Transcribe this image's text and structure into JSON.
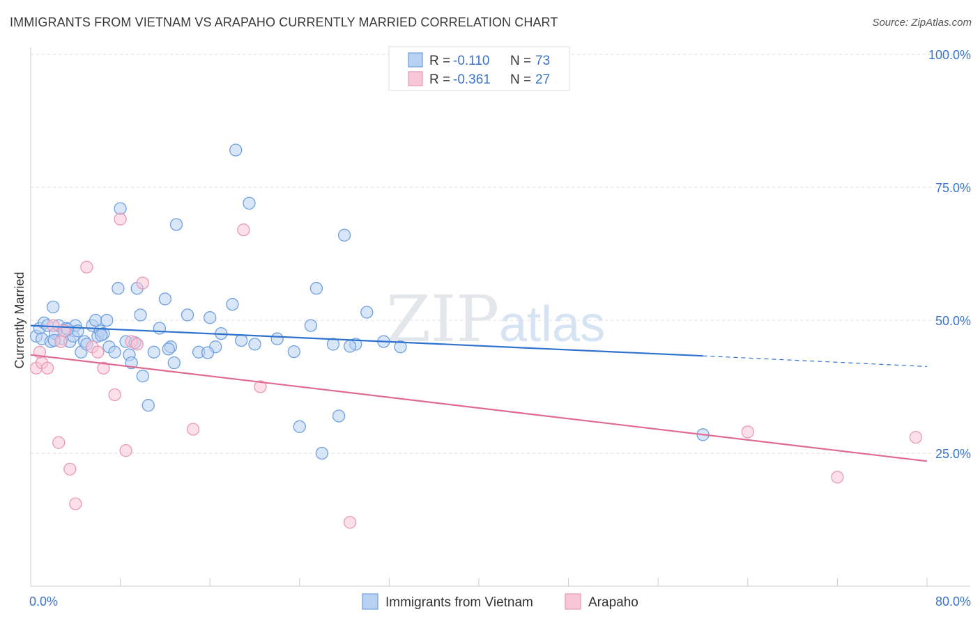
{
  "header": {
    "title": "IMMIGRANTS FROM VIETNAM VS ARAPAHO CURRENTLY MARRIED CORRELATION CHART",
    "source": "Source: ZipAtlas.com"
  },
  "watermark": {
    "zip": "ZIP",
    "atlas": "atlas"
  },
  "legend_top": [
    {
      "r_label": "R = ",
      "r_value": "-0.110",
      "n_label": "N = ",
      "n_value": "73"
    },
    {
      "r_label": "R = ",
      "r_value": "-0.361",
      "n_label": "N = ",
      "n_value": "27"
    }
  ],
  "chart_data": {
    "type": "scatter",
    "title": "IMMIGRANTS FROM VIETNAM VS ARAPAHO CURRENTLY MARRIED CORRELATION CHART",
    "xlabel": "",
    "ylabel": "Currently Married",
    "xlim": [
      0,
      80
    ],
    "ylim": [
      0,
      105
    ],
    "x_tick_labels": [
      "0.0%",
      "80.0%"
    ],
    "y_ticks": [
      25,
      50,
      75,
      100
    ],
    "y_tick_labels": [
      "25.0%",
      "50.0%",
      "75.0%",
      "100.0%"
    ],
    "grid": true,
    "legend_position": "top-center",
    "series": [
      {
        "name": "Immigrants from Vietnam",
        "color": "#6fa0e0",
        "fill": "#b9d2f3",
        "line_color": "#2e72cf",
        "trend": {
          "x0": 0,
          "y0": 49.0,
          "x1": 60,
          "y1": 43.3,
          "dash_to_x": 80,
          "dash_to_y": 41.3
        },
        "points": [
          [
            0.5,
            47
          ],
          [
            0.8,
            48.5
          ],
          [
            1.0,
            46.5
          ],
          [
            1.2,
            49.5
          ],
          [
            1.5,
            49
          ],
          [
            1.8,
            46
          ],
          [
            2.0,
            52.5
          ],
          [
            2.2,
            47.5
          ],
          [
            2.5,
            49
          ],
          [
            2.8,
            46.5
          ],
          [
            3.0,
            48
          ],
          [
            3.2,
            48.5
          ],
          [
            3.5,
            46
          ],
          [
            3.8,
            47
          ],
          [
            4.0,
            49
          ],
          [
            4.2,
            48
          ],
          [
            4.5,
            44
          ],
          [
            4.8,
            46
          ],
          [
            5.0,
            45.5
          ],
          [
            5.5,
            49
          ],
          [
            5.8,
            50
          ],
          [
            6.0,
            47
          ],
          [
            6.2,
            48
          ],
          [
            6.5,
            47.5
          ],
          [
            6.8,
            50
          ],
          [
            7.0,
            45
          ],
          [
            7.5,
            44
          ],
          [
            7.8,
            56
          ],
          [
            8.0,
            71
          ],
          [
            8.5,
            46
          ],
          [
            8.8,
            43.5
          ],
          [
            9.0,
            42
          ],
          [
            9.5,
            56
          ],
          [
            9.8,
            51
          ],
          [
            10.0,
            39.5
          ],
          [
            10.5,
            34
          ],
          [
            11.0,
            44
          ],
          [
            11.5,
            48.5
          ],
          [
            12.0,
            54
          ],
          [
            12.5,
            45
          ],
          [
            12.8,
            42
          ],
          [
            13.0,
            68
          ],
          [
            14.0,
            51
          ],
          [
            15.0,
            44
          ],
          [
            16.0,
            50.5
          ],
          [
            16.5,
            45
          ],
          [
            17.0,
            47.5
          ],
          [
            18.0,
            53
          ],
          [
            18.3,
            82
          ],
          [
            19.5,
            72
          ],
          [
            20.0,
            45.5
          ],
          [
            22.0,
            46.5
          ],
          [
            24.0,
            30
          ],
          [
            25.0,
            49
          ],
          [
            25.5,
            56
          ],
          [
            26.0,
            25
          ],
          [
            27.0,
            45.5
          ],
          [
            27.5,
            32
          ],
          [
            28.0,
            66
          ],
          [
            29.0,
            45.5
          ],
          [
            30.0,
            51.5
          ],
          [
            31.5,
            46
          ],
          [
            33.0,
            45
          ],
          [
            60.0,
            28.5
          ],
          [
            3.3,
            48.3
          ],
          [
            6.3,
            47.2
          ],
          [
            9.3,
            45.8
          ],
          [
            12.3,
            44.6
          ],
          [
            15.8,
            43.9
          ],
          [
            18.8,
            46.2
          ],
          [
            23.5,
            44.1
          ],
          [
            28.5,
            45.1
          ],
          [
            2.1,
            46.2
          ]
        ]
      },
      {
        "name": "Arapaho",
        "color": "#e79ab5",
        "fill": "#f7c7d7",
        "line_color": "#e06a92",
        "trend": {
          "x0": 0,
          "y0": 43.5,
          "x1": 80,
          "y1": 23.5
        },
        "points": [
          [
            0.5,
            41
          ],
          [
            1.0,
            42
          ],
          [
            1.5,
            41
          ],
          [
            2.0,
            49
          ],
          [
            2.5,
            27
          ],
          [
            3.0,
            48
          ],
          [
            3.5,
            22
          ],
          [
            4.0,
            15.5
          ],
          [
            5.0,
            60
          ],
          [
            5.5,
            45
          ],
          [
            6.0,
            44
          ],
          [
            6.5,
            41
          ],
          [
            7.5,
            36
          ],
          [
            8.0,
            69
          ],
          [
            8.5,
            25.5
          ],
          [
            9.0,
            46
          ],
          [
            9.5,
            45.5
          ],
          [
            10.0,
            57
          ],
          [
            14.5,
            29.5
          ],
          [
            19.0,
            67
          ],
          [
            20.5,
            37.5
          ],
          [
            28.5,
            12
          ],
          [
            64.0,
            29
          ],
          [
            72.0,
            20.5
          ],
          [
            79.0,
            28
          ],
          [
            0.8,
            44
          ],
          [
            2.7,
            46
          ]
        ]
      }
    ]
  }
}
